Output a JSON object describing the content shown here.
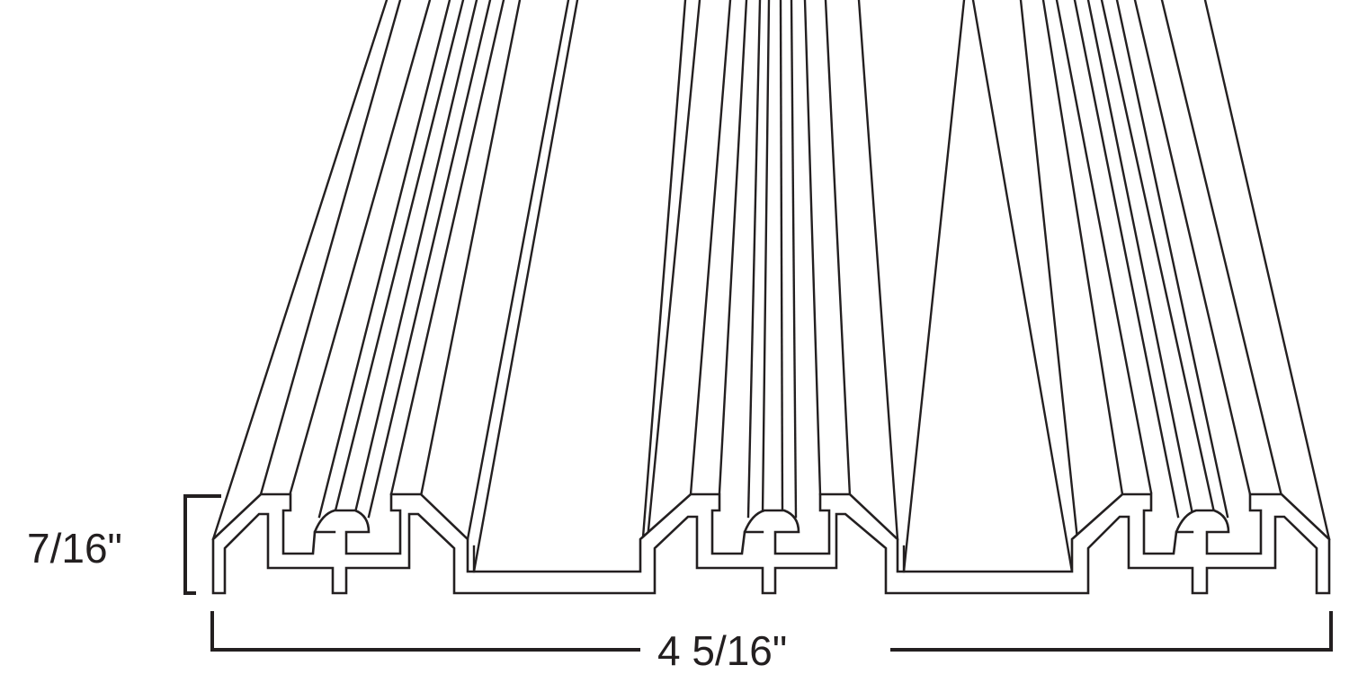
{
  "dimensions": {
    "height_label": "7/16\"",
    "width_label": "4 5/16\""
  }
}
